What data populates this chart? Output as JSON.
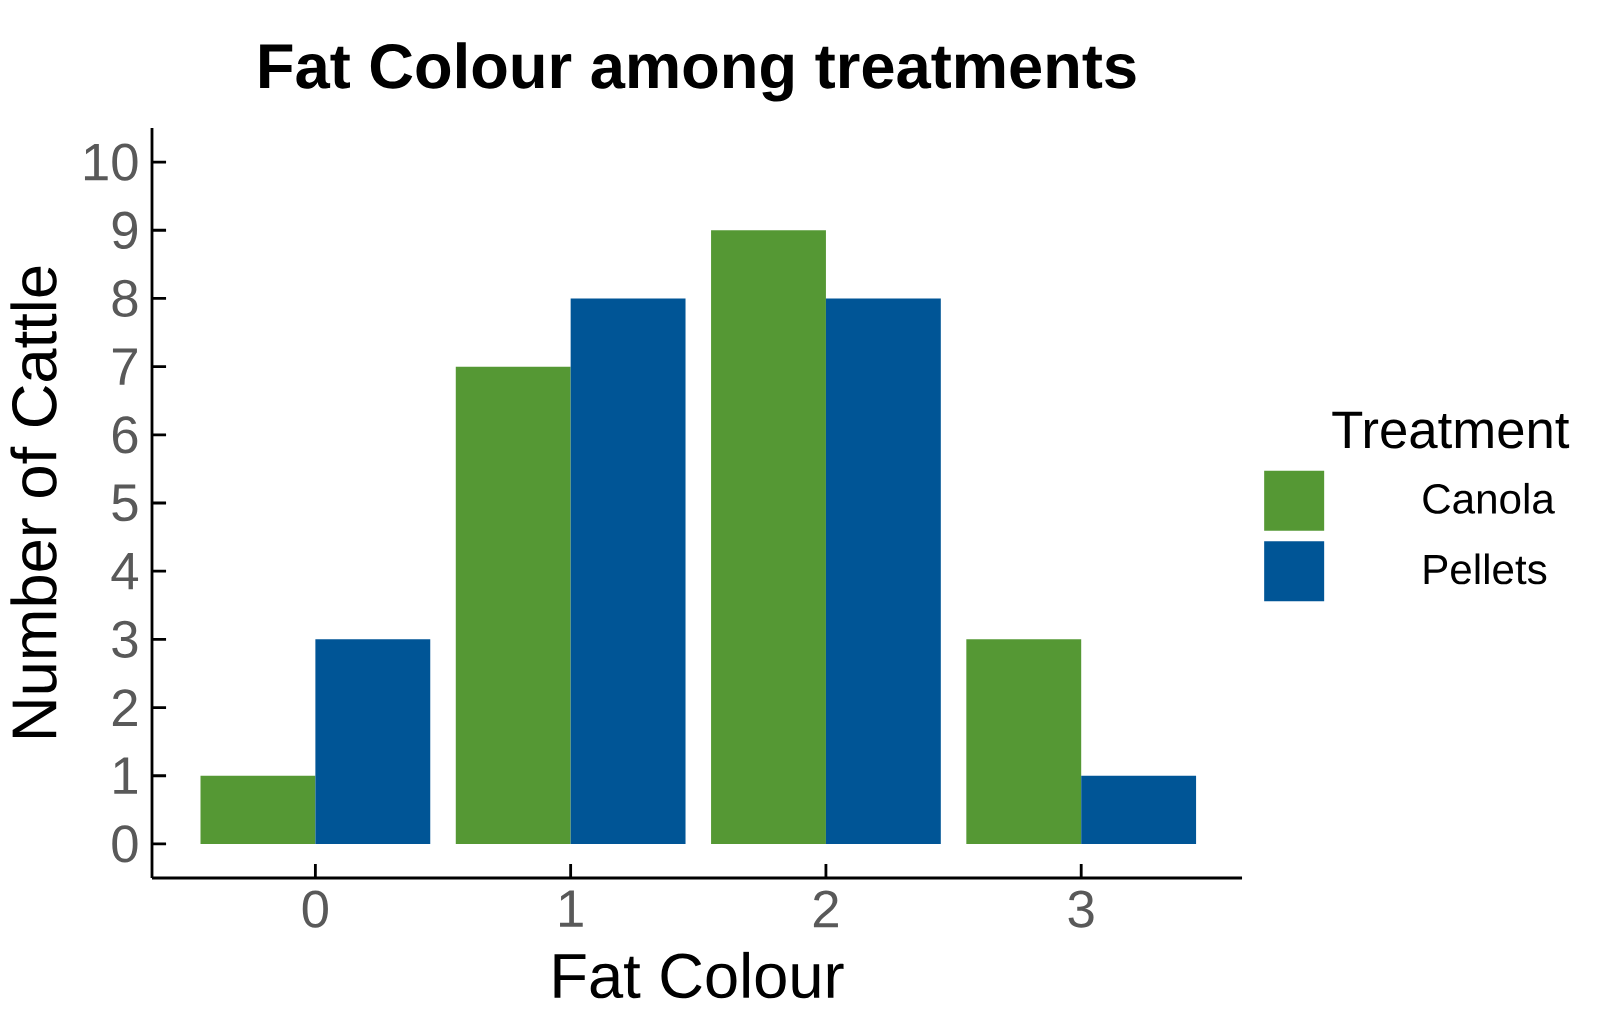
{
  "chart_data": {
    "type": "bar",
    "title": "Fat Colour among treatments",
    "xlabel": "Fat Colour",
    "ylabel": "Number of Cattle",
    "legend_title": "Treatment",
    "categories": [
      "0",
      "1",
      "2",
      "3"
    ],
    "series": [
      {
        "name": "Canola",
        "color": "#559834",
        "values": [
          1,
          7,
          9,
          3
        ]
      },
      {
        "name": "Pellets",
        "color": "#005596",
        "values": [
          3,
          8,
          8,
          1
        ]
      }
    ],
    "ylim": [
      -0.5,
      10.5
    ],
    "yticks": [
      0,
      1,
      2,
      3,
      4,
      5,
      6,
      7,
      8,
      9,
      10
    ],
    "grid": false,
    "legend": "right"
  }
}
